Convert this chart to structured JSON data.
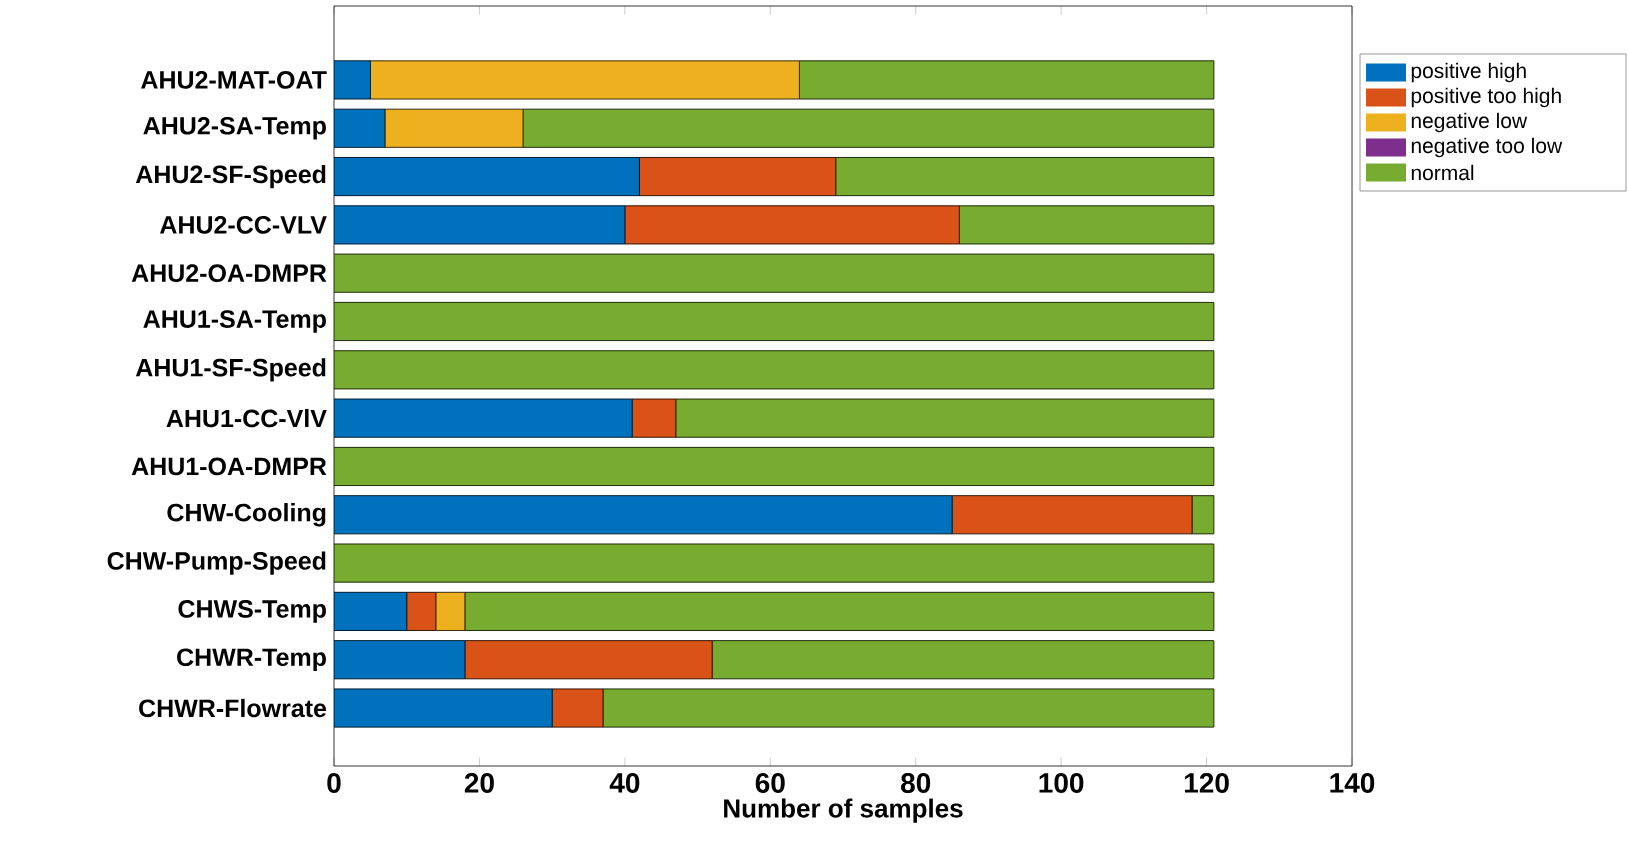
{
  "chart_data": {
    "type": "bar",
    "orientation": "horizontal",
    "stacked": true,
    "xlabel": "Number of samples",
    "categories": [
      "AHU2-MAT-OAT",
      "AHU2-SA-Temp",
      "AHU2-SF-Speed",
      "AHU2-CC-VLV",
      "AHU2-OA-DMPR",
      "AHU1-SA-Temp",
      "AHU1-SF-Speed",
      "AHU1-CC-VlV",
      "AHU1-OA-DMPR",
      "CHW-Cooling",
      "CHW-Pump-Speed",
      "CHWS-Temp",
      "CHWR-Temp",
      "CHWR-Flowrate"
    ],
    "series": [
      {
        "name": "positive high",
        "color": "#0072bd",
        "values": [
          5,
          7,
          42,
          40,
          0,
          0,
          0,
          41,
          0,
          85,
          0,
          10,
          18,
          30
        ]
      },
      {
        "name": "positive too high",
        "color": "#d95319",
        "values": [
          0,
          0,
          27,
          46,
          0,
          0,
          0,
          6,
          0,
          33,
          0,
          4,
          34,
          7
        ]
      },
      {
        "name": "negative low",
        "color": "#edb120",
        "values": [
          59,
          19,
          0,
          0,
          0,
          0,
          0,
          0,
          0,
          0,
          0,
          4,
          0,
          0
        ]
      },
      {
        "name": "negative too low",
        "color": "#7e2f8e",
        "values": [
          0,
          0,
          0,
          0,
          0,
          0,
          0,
          0,
          0,
          0,
          0,
          0,
          0,
          0
        ]
      },
      {
        "name": "normal",
        "color": "#77ac30",
        "values": [
          57,
          95,
          52,
          35,
          121,
          121,
          121,
          74,
          121,
          3,
          121,
          103,
          69,
          84
        ]
      }
    ],
    "xlim": [
      0,
      140
    ],
    "xticks": [
      0,
      20,
      40,
      60,
      80,
      100,
      120,
      140
    ],
    "legend": "top right"
  }
}
